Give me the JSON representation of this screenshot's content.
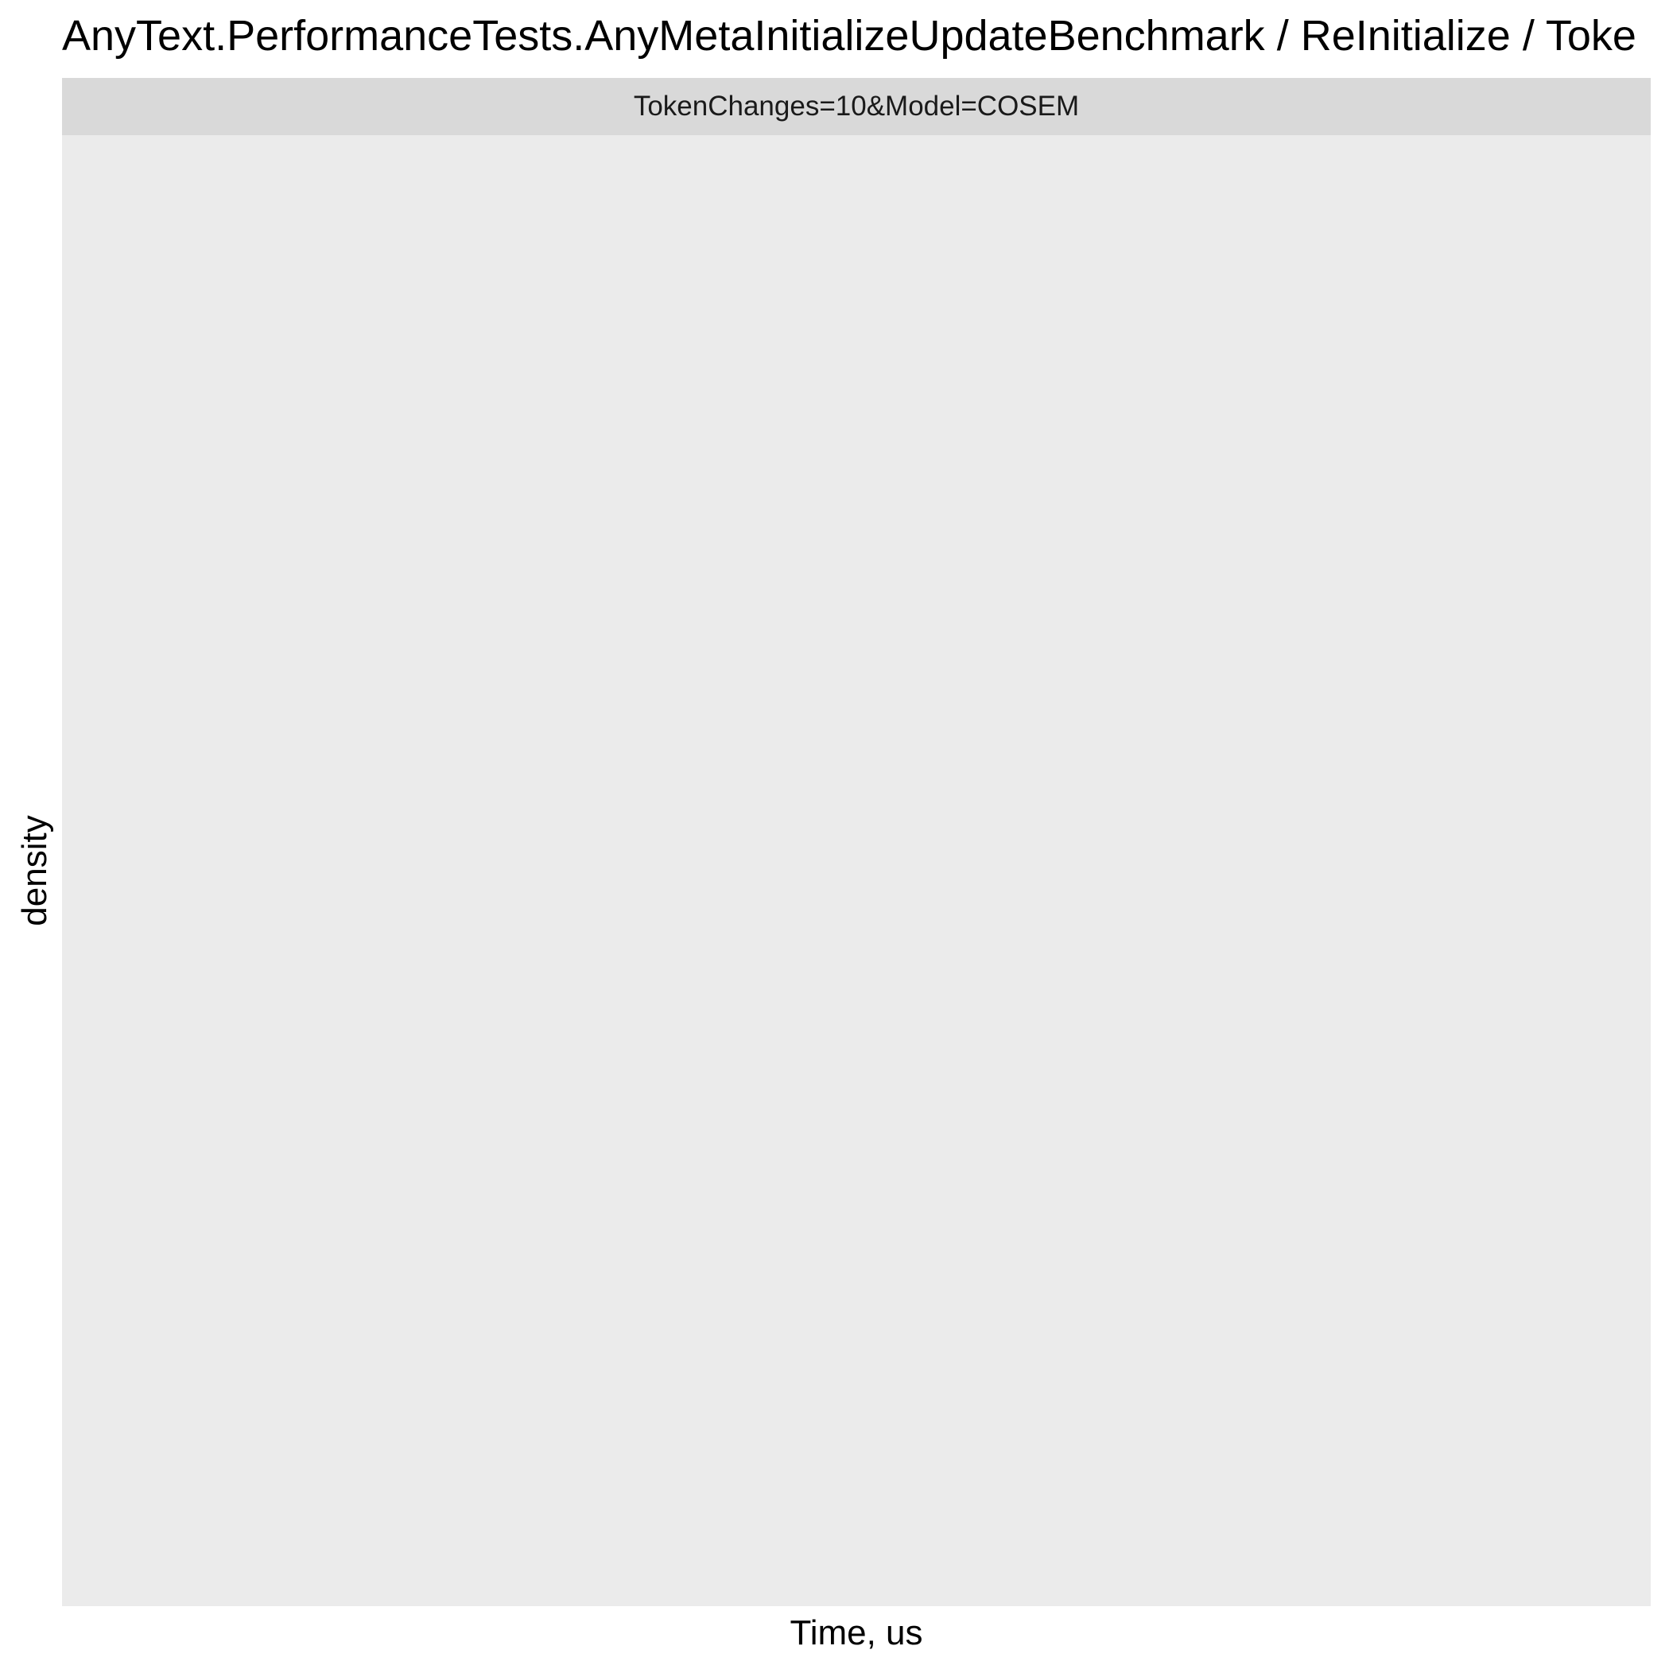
{
  "chart_data": {
    "type": "area",
    "title": "AnyText.PerformanceTests.AnyMetaInitializeUpdateBenchmark / ReInitialize / Toke",
    "facet": "TokenChanges=10&Model=COSEM",
    "xlabel": "Time, us",
    "ylabel": "density",
    "series": [],
    "grid": false,
    "legend": "none"
  },
  "colors": {
    "panel_background": "#ebebeb",
    "strip_background": "#d9d9d9",
    "text": "#000000"
  }
}
